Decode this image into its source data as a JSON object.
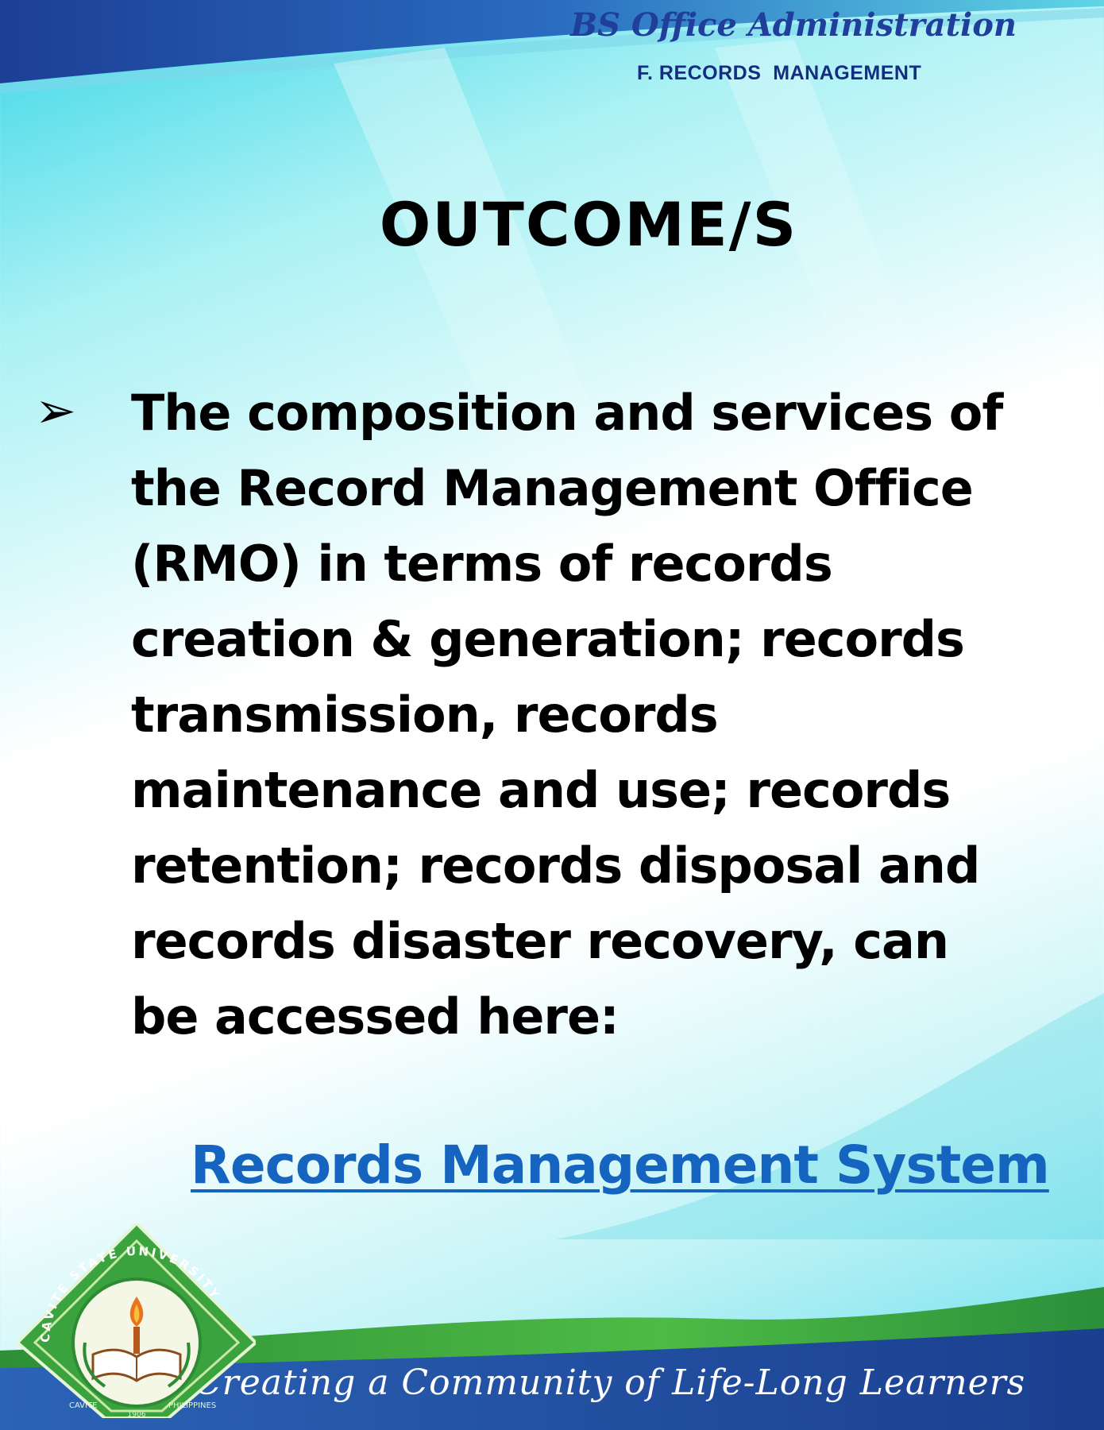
{
  "header": {
    "program": "BS Office Administration",
    "subject": "F. RECORDS  MANAGEMENT"
  },
  "main": {
    "heading": "OUTCOME/S",
    "bullet_text": "The composition and services of the Record Management Office (RMO) in terms of records creation & generation; records transmission, records maintenance and use; records retention; records disposal and records disaster recovery, can be accessed here:",
    "link_label": "Records Management System"
  },
  "footer": {
    "tagline": "Creating a Community of Life-Long Learners",
    "seal": {
      "top_text": "CAVITE STATE UNIVERSITY",
      "bottom_left": "CAVITE",
      "bottom_right": "PHILIPPINES",
      "year": "1906"
    }
  },
  "colors": {
    "top_band": "#1f4fa8",
    "bottom_band": "#1a4fa0",
    "green_wave": "#2f9d3a",
    "link": "#1565c0"
  }
}
